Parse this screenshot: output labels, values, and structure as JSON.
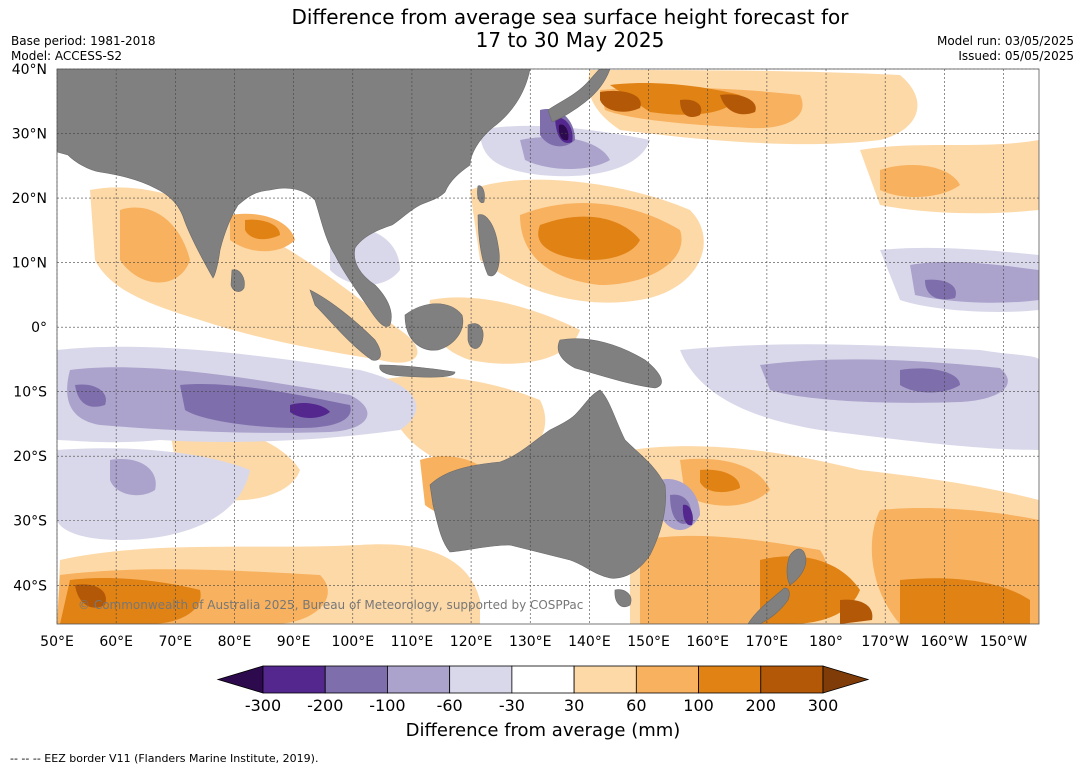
{
  "header": {
    "title_line1": "Difference from average sea surface height forecast for",
    "title_line2": "17 to 30 May 2025",
    "base_period": "Base period: 1981-2018",
    "model": "Model: ACCESS-S2",
    "model_run": "Model run: 03/05/2025",
    "issued": "Issued: 05/05/2025"
  },
  "map": {
    "lat_labels": [
      "40°N",
      "30°N",
      "20°N",
      "10°N",
      "0°",
      "10°S",
      "20°S",
      "30°S",
      "40°S"
    ],
    "lat_values": [
      40,
      30,
      20,
      10,
      0,
      -10,
      -20,
      -30,
      -40
    ],
    "lon_labels": [
      "50°E",
      "60°E",
      "70°E",
      "80°E",
      "90°E",
      "100°E",
      "110°E",
      "120°E",
      "130°E",
      "140°E",
      "150°E",
      "160°E",
      "170°E",
      "180°",
      "170°W",
      "160°W",
      "150°W"
    ],
    "lon_values": [
      50,
      60,
      70,
      80,
      90,
      100,
      110,
      120,
      130,
      140,
      150,
      160,
      170,
      180,
      190,
      200,
      210
    ],
    "extent": {
      "lon_min": 50,
      "lon_max": 216,
      "lat_min": -46,
      "lat_max": 40
    },
    "copyright": "© Commonwealth of Australia 2025, Bureau of Meteorology, supported by COSPPac",
    "land_color": "#808080"
  },
  "colorbar": {
    "ticks": [
      "-300",
      "-200",
      "-100",
      "-60",
      "-30",
      "30",
      "60",
      "100",
      "200",
      "300"
    ],
    "colors": [
      "#2d0a4e",
      "#54278f",
      "#7e6fac",
      "#aca3cc",
      "#d9d8ea",
      "#ffffff",
      "#fdd9a8",
      "#f8b15e",
      "#e08214",
      "#b35806",
      "#7f3b08"
    ],
    "label": "Difference from average (mm)"
  },
  "footnote": "-- -- -- EEZ border V11 (Flanders Marine Institute, 2019)."
}
